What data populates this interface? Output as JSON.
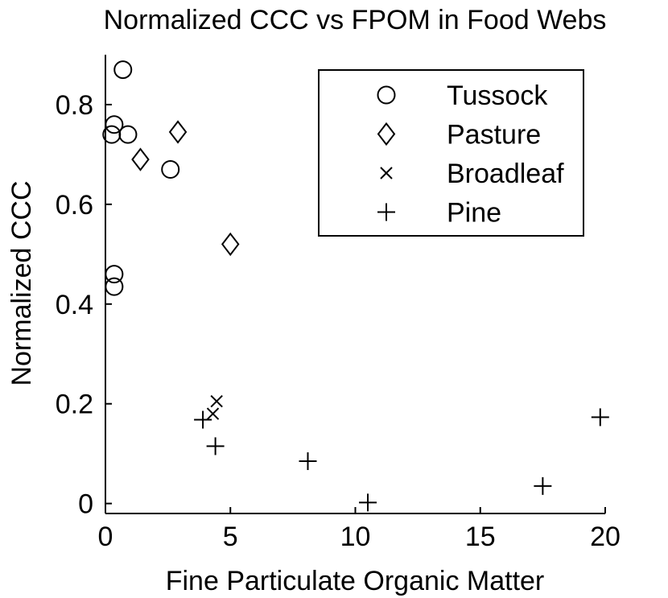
{
  "chart_data": {
    "type": "scatter",
    "title": "Normalized CCC vs FPOM in Food Webs",
    "xlabel": "Fine Particulate Organic Matter",
    "ylabel": "Normalized CCC",
    "xlim": [
      0,
      20
    ],
    "ylim": [
      -0.02,
      0.9
    ],
    "xticks": [
      0,
      5,
      10,
      15,
      20
    ],
    "xtick_labels": [
      "0",
      "5",
      "10",
      "15",
      "20"
    ],
    "yticks": [
      0,
      0.2,
      0.4,
      0.6,
      0.8
    ],
    "ytick_labels": [
      "0",
      "0.2",
      "0.4",
      "0.6",
      "0.8"
    ],
    "grid": false,
    "legend_position": "top-right",
    "series": [
      {
        "name": "Tussock",
        "marker": "circle",
        "x": [
          0.7,
          0.35,
          0.25,
          0.9,
          2.6,
          0.35,
          0.35
        ],
        "y": [
          0.87,
          0.76,
          0.74,
          0.74,
          0.67,
          0.46,
          0.435
        ]
      },
      {
        "name": "Pasture",
        "marker": "diamond",
        "x": [
          2.9,
          1.4,
          5.0
        ],
        "y": [
          0.745,
          0.69,
          0.52
        ]
      },
      {
        "name": "Broadleaf",
        "marker": "x",
        "x": [
          4.45,
          4.3
        ],
        "y": [
          0.205,
          0.18
        ]
      },
      {
        "name": "Pine",
        "marker": "plus",
        "x": [
          3.9,
          4.4,
          8.1,
          10.5,
          17.5,
          19.8
        ],
        "y": [
          0.168,
          0.115,
          0.085,
          0.002,
          0.035,
          0.173
        ]
      }
    ],
    "colors": {
      "marker": "#000000",
      "axes": "#000000",
      "background": "#ffffff"
    }
  }
}
